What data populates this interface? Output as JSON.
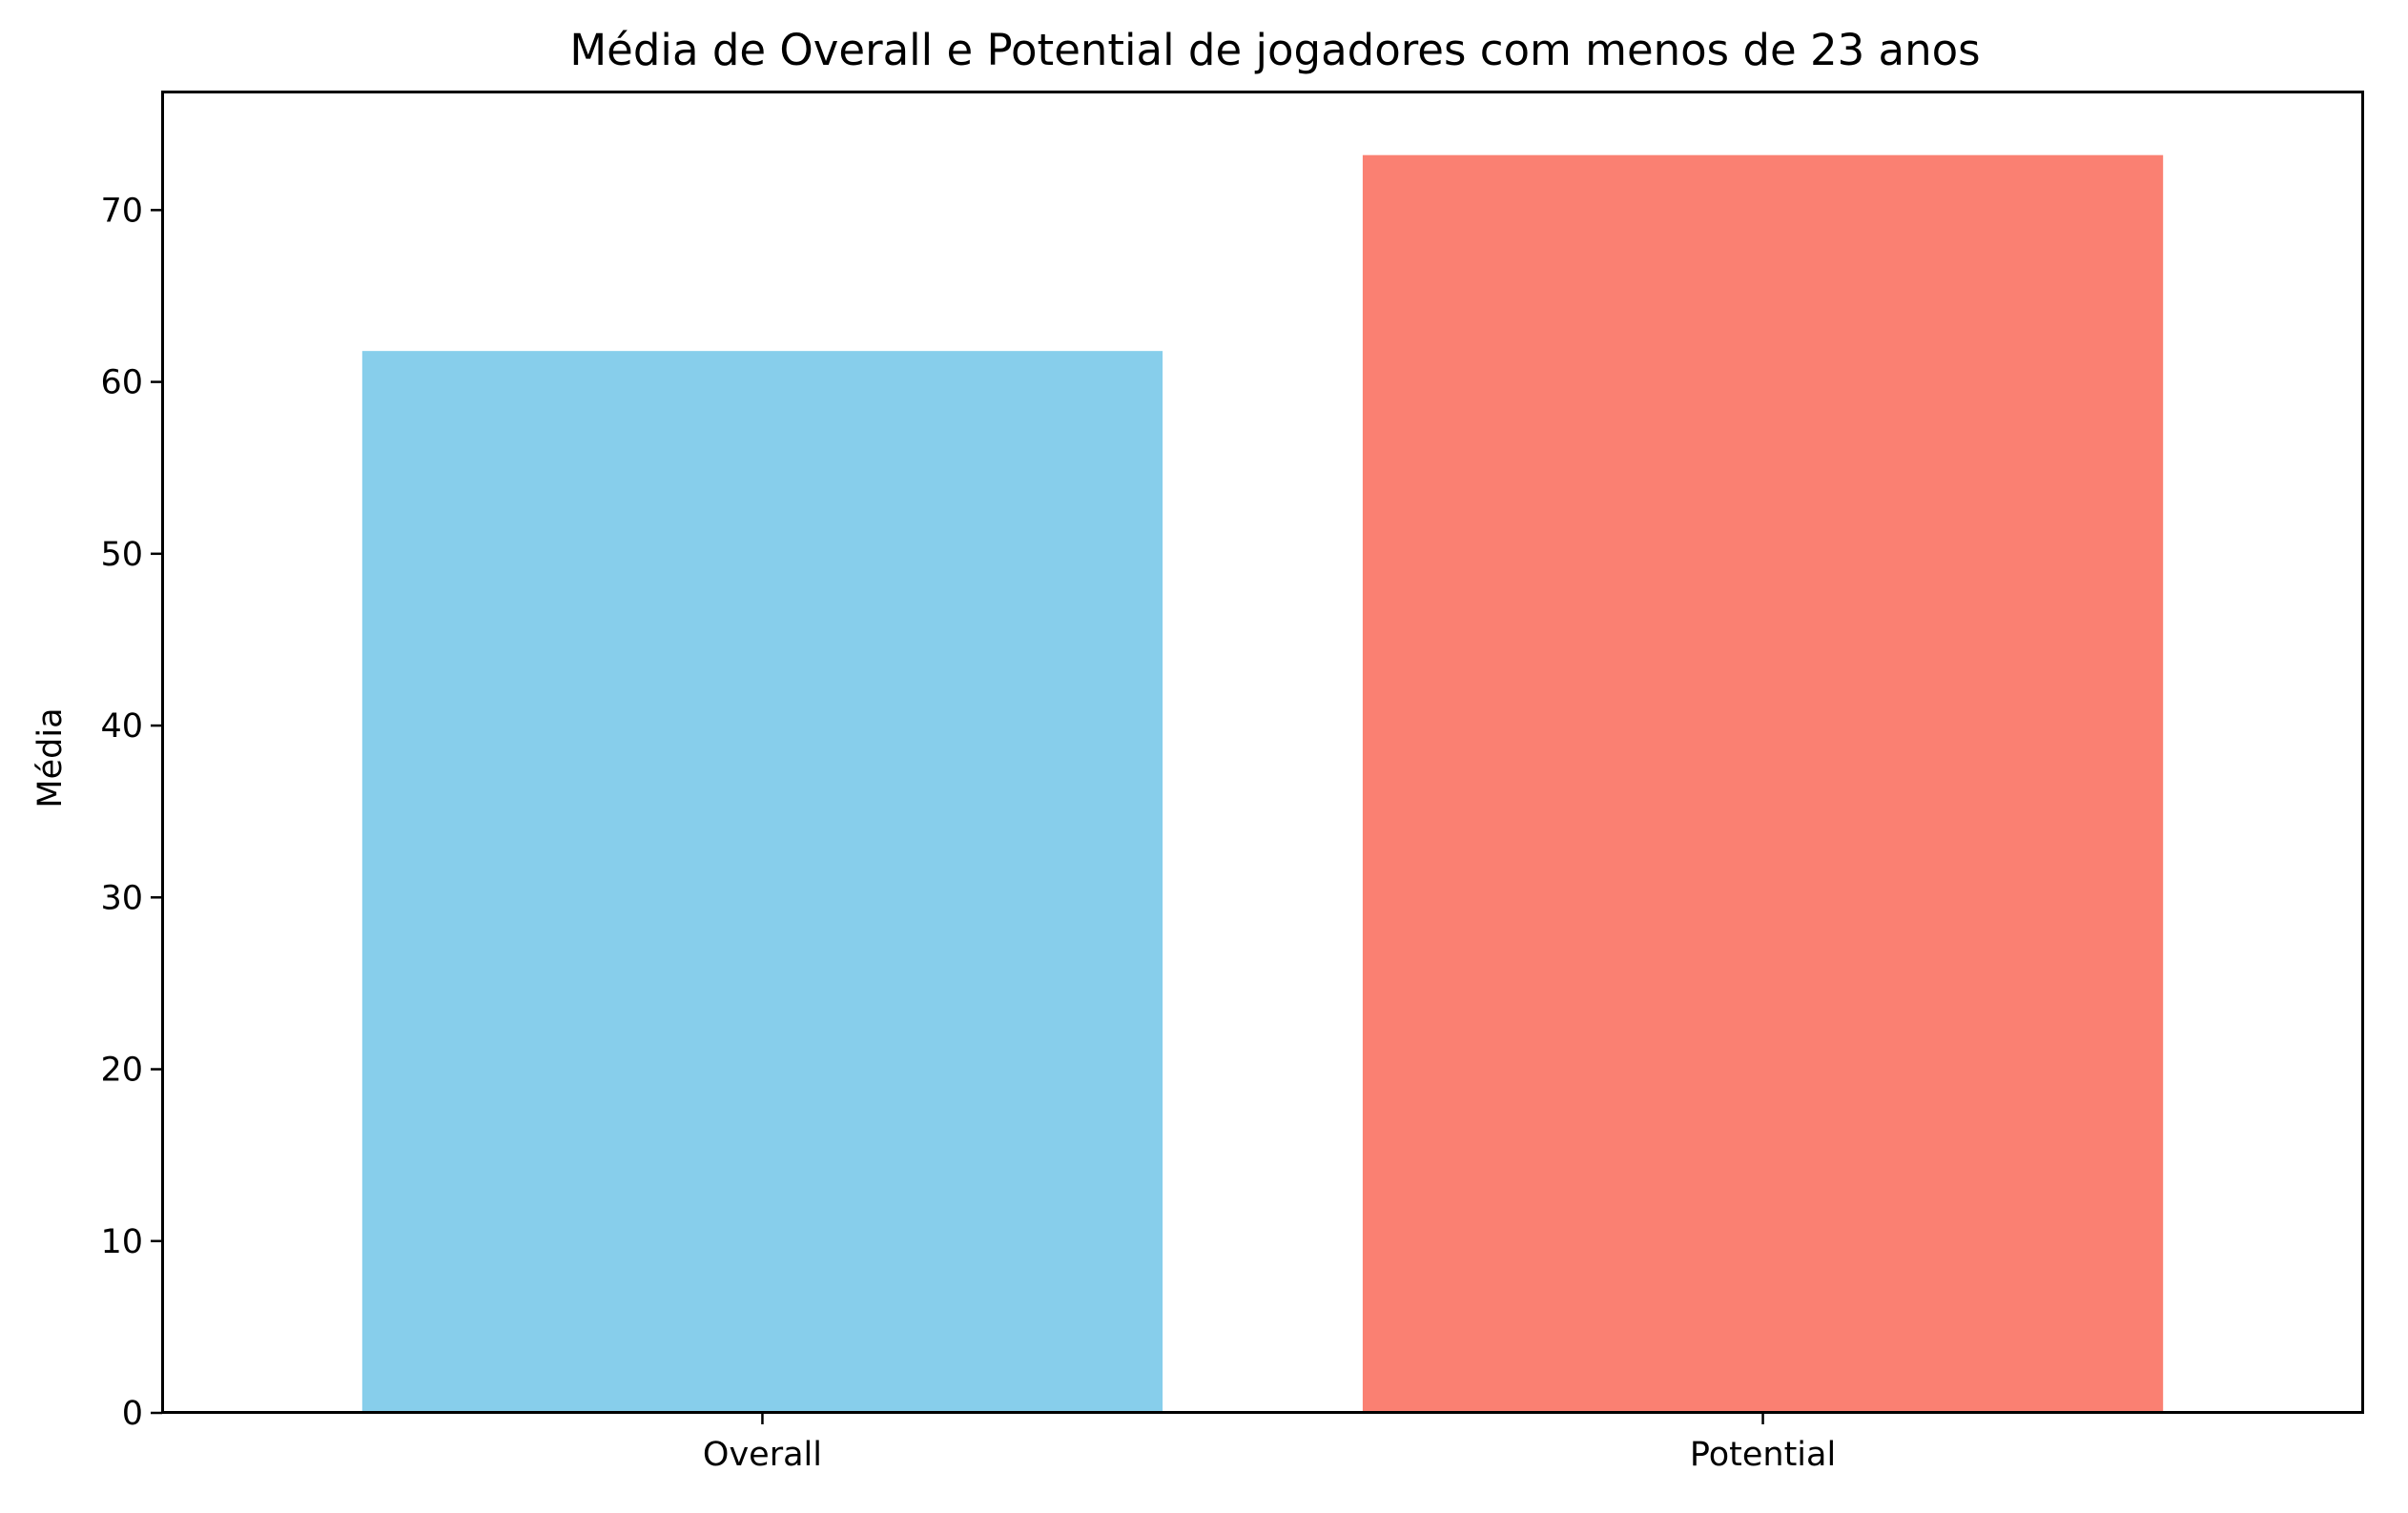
{
  "chart_data": {
    "type": "bar",
    "title": "Média de Overall e Potential de jogadores com menos de 23 anos",
    "xlabel": "",
    "ylabel": "Média",
    "categories": [
      "Overall",
      "Potential"
    ],
    "values": [
      61.8,
      73.2
    ],
    "colors": [
      "#87CEEB",
      "#FA8072"
    ],
    "ylim": [
      0,
      76.9
    ],
    "yticks": [
      0,
      10,
      20,
      30,
      40,
      50,
      60,
      70
    ],
    "grid": false,
    "legend": "none"
  }
}
